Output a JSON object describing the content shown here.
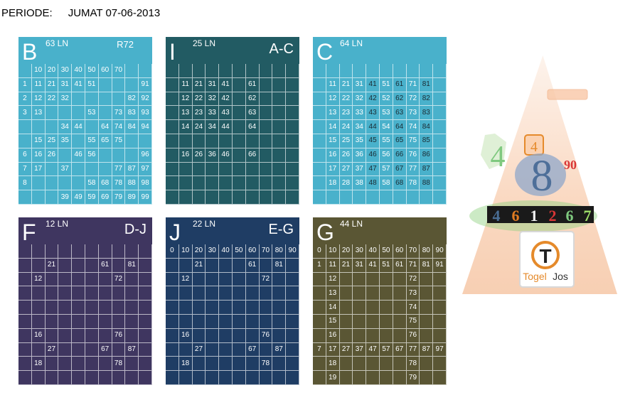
{
  "header": {
    "label": "PERIODE:",
    "value": "JUMAT 07-06-2013"
  },
  "panels": [
    {
      "letter": "B",
      "lines": "63 LN",
      "tag": "R72",
      "rows": [
        [
          "",
          "10",
          "20",
          "30",
          "40",
          "50",
          "60",
          "70",
          "",
          ""
        ],
        [
          "1",
          "11",
          "21",
          "31",
          "41",
          "51",
          "",
          "",
          "",
          "91"
        ],
        [
          "2",
          "12",
          "22",
          "32",
          "",
          "",
          "",
          "",
          "82",
          "92"
        ],
        [
          "3",
          "13",
          "",
          "",
          "",
          "53",
          "",
          "73",
          "83",
          "93"
        ],
        [
          "",
          "",
          "",
          "34",
          "44",
          "",
          "64",
          "74",
          "84",
          "94"
        ],
        [
          "",
          "15",
          "25",
          "35",
          "",
          "55",
          "65",
          "75",
          "",
          ""
        ],
        [
          "6",
          "16",
          "26",
          "",
          "46",
          "56",
          "",
          "",
          "",
          "96"
        ],
        [
          "7",
          "17",
          "",
          "37",
          "",
          "",
          "",
          "77",
          "87",
          "97"
        ],
        [
          "8",
          "",
          "",
          "",
          "",
          "58",
          "68",
          "78",
          "88",
          "98"
        ],
        [
          "",
          "",
          "",
          "39",
          "49",
          "59",
          "69",
          "79",
          "89",
          "99"
        ]
      ]
    },
    {
      "letter": "I",
      "lines": "25 LN",
      "tag": "A-C",
      "rows": [
        [
          "",
          "",
          "",
          "",
          "",
          "",
          "",
          "",
          "",
          ""
        ],
        [
          "",
          "11",
          "21",
          "31",
          "41",
          "",
          "61",
          "",
          "",
          ""
        ],
        [
          "",
          "12",
          "22",
          "32",
          "42",
          "",
          "62",
          "",
          "",
          ""
        ],
        [
          "",
          "13",
          "23",
          "33",
          "43",
          "",
          "63",
          "",
          "",
          ""
        ],
        [
          "",
          "14",
          "24",
          "34",
          "44",
          "",
          "64",
          "",
          "",
          ""
        ],
        [
          "",
          "",
          "",
          "",
          "",
          "",
          "",
          "",
          "",
          ""
        ],
        [
          "",
          "16",
          "26",
          "36",
          "46",
          "",
          "66",
          "",
          "",
          ""
        ],
        [
          "",
          "",
          "",
          "",
          "",
          "",
          "",
          "",
          "",
          ""
        ],
        [
          "",
          "",
          "",
          "",
          "",
          "",
          "",
          "",
          "",
          ""
        ],
        [
          "",
          "",
          "",
          "",
          "",
          "",
          "",
          "",
          "",
          ""
        ]
      ]
    },
    {
      "letter": "C",
      "lines": "64 LN",
      "tag": "",
      "rows": [
        [
          "",
          "",
          "",
          "",
          "",
          "",
          "",
          "",
          "",
          ""
        ],
        [
          "",
          "11",
          "21",
          "31",
          "41",
          "51",
          "61",
          "71",
          "81",
          ""
        ],
        [
          "",
          "12",
          "22",
          "32",
          "42",
          "52",
          "62",
          "72",
          "82",
          ""
        ],
        [
          "",
          "13",
          "23",
          "33",
          "43",
          "53",
          "63",
          "73",
          "83",
          ""
        ],
        [
          "",
          "14",
          "24",
          "34",
          "44",
          "54",
          "64",
          "74",
          "84",
          ""
        ],
        [
          "",
          "15",
          "25",
          "35",
          "45",
          "55",
          "65",
          "75",
          "85",
          ""
        ],
        [
          "",
          "16",
          "26",
          "36",
          "46",
          "56",
          "66",
          "76",
          "86",
          ""
        ],
        [
          "",
          "17",
          "27",
          "37",
          "47",
          "57",
          "67",
          "77",
          "87",
          ""
        ],
        [
          "",
          "18",
          "28",
          "38",
          "48",
          "58",
          "68",
          "78",
          "88",
          ""
        ],
        [
          "",
          "",
          "",
          "",
          "",
          "",
          "",
          "",
          "",
          ""
        ]
      ]
    },
    {
      "letter": "F",
      "lines": "12 LN",
      "tag": "D-J",
      "rows": [
        [
          "",
          "",
          "",
          "",
          "",
          "",
          "",
          "",
          "",
          ""
        ],
        [
          "",
          "",
          "21",
          "",
          "",
          "",
          "61",
          "",
          "81",
          ""
        ],
        [
          "",
          "12",
          "",
          "",
          "",
          "",
          "",
          "72",
          "",
          ""
        ],
        [
          "",
          "",
          "",
          "",
          "",
          "",
          "",
          "",
          "",
          ""
        ],
        [
          "",
          "",
          "",
          "",
          "",
          "",
          "",
          "",
          "",
          ""
        ],
        [
          "",
          "",
          "",
          "",
          "",
          "",
          "",
          "",
          "",
          ""
        ],
        [
          "",
          "16",
          "",
          "",
          "",
          "",
          "",
          "76",
          "",
          ""
        ],
        [
          "",
          "",
          "27",
          "",
          "",
          "",
          "67",
          "",
          "87",
          ""
        ],
        [
          "",
          "18",
          "",
          "",
          "",
          "",
          "",
          "78",
          "",
          ""
        ],
        [
          "",
          "",
          "",
          "",
          "",
          "",
          "",
          "",
          "",
          ""
        ]
      ]
    },
    {
      "letter": "J",
      "lines": "22 LN",
      "tag": "E-G",
      "rows": [
        [
          "0",
          "10",
          "20",
          "30",
          "40",
          "50",
          "60",
          "70",
          "80",
          "90"
        ],
        [
          "",
          "",
          "21",
          "",
          "",
          "",
          "61",
          "",
          "81",
          ""
        ],
        [
          "",
          "12",
          "",
          "",
          "",
          "",
          "",
          "72",
          "",
          ""
        ],
        [
          "",
          "",
          "",
          "",
          "",
          "",
          "",
          "",
          "",
          ""
        ],
        [
          "",
          "",
          "",
          "",
          "",
          "",
          "",
          "",
          "",
          ""
        ],
        [
          "",
          "",
          "",
          "",
          "",
          "",
          "",
          "",
          "",
          ""
        ],
        [
          "",
          "16",
          "",
          "",
          "",
          "",
          "",
          "76",
          "",
          ""
        ],
        [
          "",
          "",
          "27",
          "",
          "",
          "",
          "67",
          "",
          "87",
          ""
        ],
        [
          "",
          "18",
          "",
          "",
          "",
          "",
          "",
          "78",
          "",
          ""
        ],
        [
          "",
          "",
          "",
          "",
          "",
          "",
          "",
          "",
          "",
          ""
        ]
      ]
    },
    {
      "letter": "G",
      "lines": "44 LN",
      "tag": "",
      "rows": [
        [
          "0",
          "10",
          "20",
          "30",
          "40",
          "50",
          "60",
          "70",
          "80",
          "90"
        ],
        [
          "1",
          "11",
          "21",
          "31",
          "41",
          "51",
          "61",
          "71",
          "81",
          "91"
        ],
        [
          "",
          "12",
          "",
          "",
          "",
          "",
          "",
          "72",
          "",
          ""
        ],
        [
          "",
          "13",
          "",
          "",
          "",
          "",
          "",
          "73",
          "",
          ""
        ],
        [
          "",
          "14",
          "",
          "",
          "",
          "",
          "",
          "74",
          "",
          ""
        ],
        [
          "",
          "15",
          "",
          "",
          "",
          "",
          "",
          "75",
          "",
          ""
        ],
        [
          "",
          "16",
          "",
          "",
          "",
          "",
          "",
          "76",
          "",
          ""
        ],
        [
          "7",
          "17",
          "27",
          "37",
          "47",
          "57",
          "67",
          "77",
          "87",
          "97"
        ],
        [
          "",
          "18",
          "",
          "",
          "",
          "",
          "",
          "78",
          "",
          ""
        ],
        [
          "",
          "19",
          "",
          "",
          "",
          "",
          "",
          "79",
          "",
          ""
        ]
      ]
    }
  ],
  "logo": {
    "num_green": "4",
    "num_orange": "4",
    "num_main": "8",
    "num_red": "90",
    "digits": [
      "4",
      "6",
      "1",
      "2",
      "6",
      "7"
    ],
    "brand_a": "Togel",
    "brand_b": "Jos",
    "brand_letter": "T",
    "colors": {
      "green": "#7fc97f",
      "orange": "#e58a2b",
      "blue": "#5d7fa6",
      "red": "#d93636"
    },
    "digit_colors": [
      "#4a6e95",
      "#e07b22",
      "#f2f2f2",
      "#d93636",
      "#7fc97f",
      "#9fe06a"
    ]
  }
}
